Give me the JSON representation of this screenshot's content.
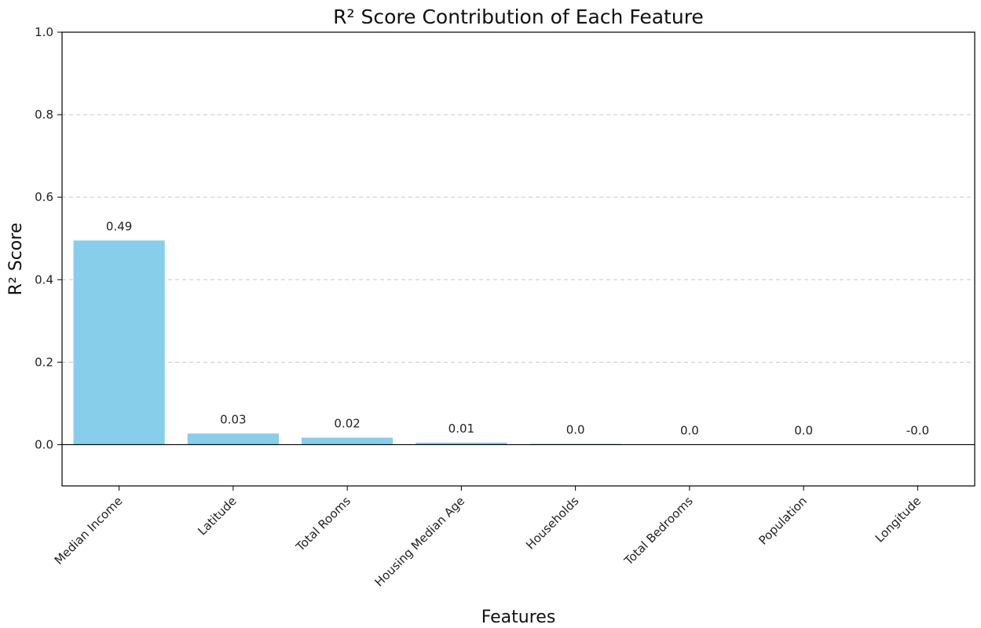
{
  "chart_data": {
    "type": "bar",
    "title": "R² Score Contribution of Each Feature",
    "xlabel": "Features",
    "ylabel": "R² Score",
    "categories": [
      "Median Income",
      "Latitude",
      "Total Rooms",
      "Housing Median Age",
      "Households",
      "Total Bedrooms",
      "Population",
      "Longitude"
    ],
    "values": [
      0.495,
      0.027,
      0.017,
      0.005,
      0.002,
      0.0,
      0.0,
      -0.001
    ],
    "data_labels": [
      "0.49",
      "0.03",
      "0.02",
      "0.01",
      "0.0",
      "0.0",
      "0.0",
      "-0.0"
    ],
    "ylim": [
      -0.1,
      1.0
    ],
    "yticks": [
      "0.0",
      "0.2",
      "0.4",
      "0.6",
      "0.8",
      "1.0"
    ],
    "ytick_values": [
      0.0,
      0.2,
      0.4,
      0.6,
      0.8,
      1.0
    ],
    "grid": "horizontal dashed",
    "zero_line": true,
    "bar_color": "#87CEEB",
    "grid_color": "#c8c8c8",
    "axis_color": "#000000"
  }
}
